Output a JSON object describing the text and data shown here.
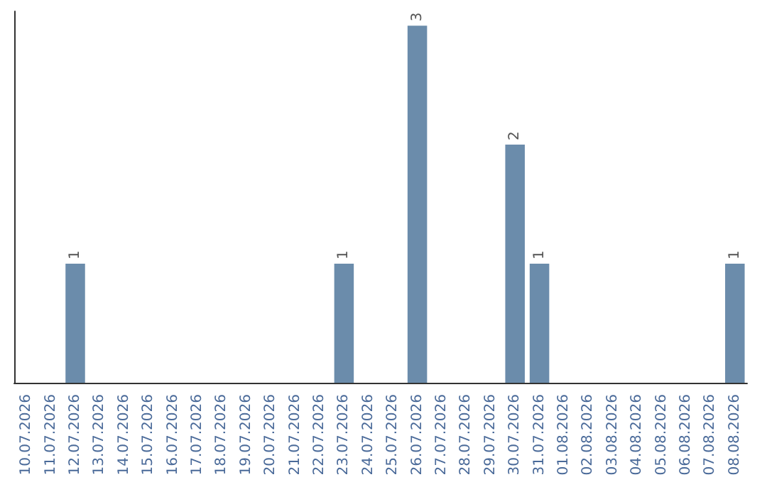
{
  "chart_data": {
    "type": "bar",
    "categories": [
      "10.07.2026",
      "11.07.2026",
      "12.07.2026",
      "13.07.2026",
      "14.07.2026",
      "15.07.2026",
      "16.07.2026",
      "17.07.2026",
      "18.07.2026",
      "19.07.2026",
      "20.07.2026",
      "21.07.2026",
      "22.07.2026",
      "23.07.2026",
      "24.07.2026",
      "25.07.2026",
      "26.07.2026",
      "27.07.2026",
      "28.07.2026",
      "29.07.2026",
      "30.07.2026",
      "31.07.2026",
      "01.08.2026",
      "02.08.2026",
      "03.08.2026",
      "04.08.2026",
      "05.08.2026",
      "06.08.2026",
      "07.08.2026",
      "08.08.2026"
    ],
    "values": [
      0,
      0,
      1,
      0,
      0,
      0,
      0,
      0,
      0,
      0,
      0,
      0,
      0,
      1,
      0,
      0,
      3,
      0,
      0,
      0,
      2,
      1,
      0,
      0,
      0,
      0,
      0,
      0,
      0,
      1
    ],
    "value_labels": [
      null,
      null,
      "1",
      null,
      null,
      null,
      null,
      null,
      null,
      null,
      null,
      null,
      null,
      "1",
      null,
      null,
      "3",
      null,
      null,
      null,
      "2",
      "1",
      null,
      null,
      null,
      null,
      null,
      null,
      null,
      "1"
    ],
    "color": "#6b8cab",
    "grid": false,
    "tick_labels": "x"
  }
}
